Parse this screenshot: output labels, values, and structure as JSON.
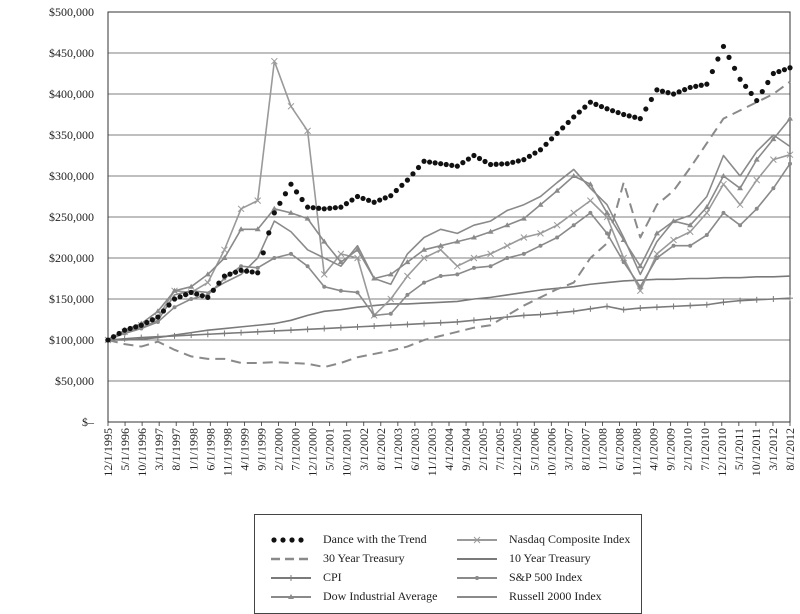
{
  "chart_data": {
    "type": "line",
    "title": "",
    "xlabel": "",
    "ylabel": "",
    "ylim": [
      0,
      500000
    ],
    "y_ticks": [
      "$500,000",
      "$450,000",
      "$400,000",
      "$350,000",
      "$300,000",
      "$250,000",
      "$200,000",
      "$150,000",
      "$100,000",
      "$50,000",
      "$–"
    ],
    "y_tick_values": [
      500000,
      450000,
      400000,
      350000,
      300000,
      250000,
      200000,
      150000,
      100000,
      50000,
      0
    ],
    "x_ticks": [
      "12/1/1995",
      "5/1/1996",
      "10/1/1996",
      "3/1/1997",
      "8/1/1997",
      "1/1/1998",
      "6/1/1998",
      "11/1/1998",
      "4/1/1999",
      "9/1/1999",
      "2/1/2000",
      "7/1/2000",
      "12/1/2000",
      "5/1/2001",
      "10/1/2001",
      "3/1/2002",
      "8/1/2002",
      "1/1/2003",
      "6/1/2003",
      "11/1/2003",
      "4/1/2004",
      "9/1/2004",
      "2/1/2005",
      "7/1/2005",
      "12/1/2005",
      "5/1/2006",
      "10/1/2006",
      "3/1/2007",
      "8/1/2007",
      "1/1/2008",
      "6/1/2008",
      "11/1/2008",
      "4/1/2009",
      "9/1/2009",
      "2/1/2010",
      "7/1/2010",
      "12/1/2010",
      "5/1/2011",
      "10/1/2011",
      "3/1/2012",
      "8/1/2012"
    ],
    "grid": true,
    "legend_position": "bottom",
    "series": [
      {
        "name": "Dance with the Trend",
        "color": "#111111",
        "style": "dotted",
        "values": [
          100000,
          112000,
          118000,
          128000,
          150000,
          158000,
          152000,
          178000,
          185000,
          182000,
          255000,
          290000,
          262000,
          260000,
          262000,
          275000,
          268000,
          276000,
          295000,
          318000,
          315000,
          312000,
          325000,
          314000,
          315000,
          320000,
          332000,
          352000,
          372000,
          390000,
          382000,
          375000,
          370000,
          405000,
          400000,
          408000,
          412000,
          458000,
          418000,
          392000,
          425000,
          432000
        ]
      },
      {
        "name": "Nasdaq Composite Index",
        "color": "#9a9a9a",
        "style": "solid",
        "marker": "x",
        "values": [
          100000,
          110000,
          118000,
          128000,
          160000,
          158000,
          170000,
          210000,
          260000,
          270000,
          440000,
          385000,
          355000,
          180000,
          205000,
          200000,
          130000,
          150000,
          178000,
          200000,
          210000,
          190000,
          200000,
          205000,
          215000,
          225000,
          230000,
          240000,
          255000,
          270000,
          250000,
          200000,
          160000,
          205000,
          222000,
          232000,
          255000,
          290000,
          265000,
          295000,
          320000,
          326000
        ]
      },
      {
        "name": "30 Year Treasury",
        "color": "#8a8a8a",
        "style": "dashed",
        "values": [
          100000,
          95000,
          92000,
          98000,
          88000,
          80000,
          77000,
          77000,
          72000,
          72000,
          73000,
          72000,
          71000,
          67000,
          72000,
          79000,
          83000,
          87000,
          92000,
          100000,
          105000,
          110000,
          115000,
          118000,
          130000,
          142000,
          152000,
          162000,
          170000,
          200000,
          218000,
          292000,
          225000,
          265000,
          282000,
          310000,
          340000,
          370000,
          380000,
          390000,
          400000,
          415000
        ]
      },
      {
        "name": "10 Year Treasury",
        "color": "#7a7a7a",
        "style": "solid",
        "values": [
          100000,
          100000,
          101000,
          103000,
          106000,
          109000,
          112000,
          114000,
          116000,
          118000,
          120000,
          124000,
          130000,
          135000,
          137000,
          140000,
          142000,
          144000,
          144000,
          145000,
          146000,
          147000,
          150000,
          152000,
          155000,
          158000,
          161000,
          163000,
          165000,
          168000,
          170000,
          172000,
          173000,
          174000,
          174000,
          175000,
          175000,
          176000,
          176000,
          177000,
          177000,
          178000
        ]
      },
      {
        "name": "CPI",
        "color": "#7a7a7a",
        "style": "solid",
        "marker": "+",
        "values": [
          100000,
          101500,
          103000,
          104000,
          105000,
          106000,
          107000,
          108000,
          109000,
          110000,
          111000,
          112000,
          113000,
          114000,
          115000,
          116000,
          117000,
          118000,
          119000,
          120000,
          121000,
          122000,
          124000,
          126000,
          128000,
          130000,
          131000,
          133000,
          135000,
          138000,
          141000,
          137000,
          139000,
          140000,
          141000,
          142000,
          143000,
          146000,
          148000,
          149000,
          150000,
          151000
        ]
      },
      {
        "name": "S&P 500 Index",
        "color": "#8a8a8a",
        "style": "solid",
        "marker": "dot",
        "values": [
          100000,
          108000,
          114000,
          122000,
          140000,
          150000,
          155000,
          175000,
          190000,
          188000,
          200000,
          205000,
          190000,
          165000,
          160000,
          158000,
          130000,
          132000,
          155000,
          170000,
          178000,
          180000,
          188000,
          190000,
          200000,
          205000,
          215000,
          225000,
          240000,
          255000,
          230000,
          195000,
          165000,
          200000,
          215000,
          215000,
          228000,
          255000,
          240000,
          260000,
          285000,
          315000
        ]
      },
      {
        "name": "Dow Industrial Average",
        "color": "#8a8a8a",
        "style": "solid",
        "marker": "triangle",
        "values": [
          100000,
          112000,
          120000,
          135000,
          160000,
          165000,
          180000,
          200000,
          235000,
          235000,
          260000,
          255000,
          248000,
          220000,
          195000,
          210000,
          175000,
          180000,
          195000,
          210000,
          215000,
          220000,
          225000,
          232000,
          240000,
          248000,
          265000,
          282000,
          300000,
          290000,
          255000,
          222000,
          190000,
          230000,
          245000,
          240000,
          262000,
          300000,
          285000,
          320000,
          345000,
          370000
        ]
      },
      {
        "name": "Russell 2000 Index",
        "color": "#8a8a8a",
        "style": "solid",
        "values": [
          100000,
          110000,
          115000,
          124000,
          155000,
          160000,
          158000,
          170000,
          180000,
          200000,
          245000,
          232000,
          210000,
          200000,
          190000,
          215000,
          175000,
          168000,
          205000,
          225000,
          235000,
          230000,
          240000,
          245000,
          258000,
          265000,
          275000,
          292000,
          308000,
          285000,
          265000,
          225000,
          180000,
          220000,
          245000,
          252000,
          275000,
          325000,
          300000,
          330000,
          350000,
          336000
        ]
      }
    ]
  }
}
